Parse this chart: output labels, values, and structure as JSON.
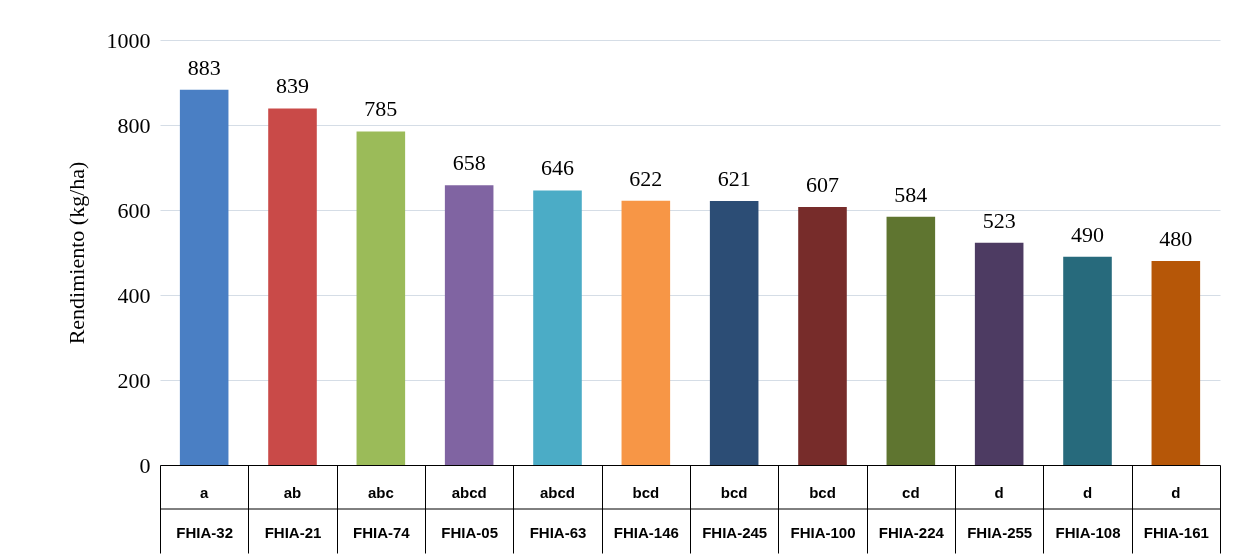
{
  "chart_data": {
    "type": "bar",
    "ylabel": "Rendimiento (kg/ha)",
    "categories": [
      "FHIA-32",
      "FHIA-21",
      "FHIA-74",
      "FHIA-05",
      "FHIA-63",
      "FHIA-146",
      "FHIA-245",
      "FHIA-100",
      "FHIA-224",
      "FHIA-255",
      "FHIA-108",
      "FHIA-161"
    ],
    "values": [
      883,
      839,
      785,
      658,
      646,
      622,
      621,
      607,
      584,
      523,
      490,
      480
    ],
    "colors": [
      "#4a7fc4",
      "#c94a48",
      "#9bbb59",
      "#8064a2",
      "#4bacc6",
      "#f79646",
      "#2c4d75",
      "#772c2a",
      "#5f7530",
      "#4d3b62",
      "#276a7c",
      "#b65708"
    ],
    "ylim": [
      0,
      1000
    ],
    "yticks": [
      0,
      200,
      400,
      600,
      800,
      1000
    ],
    "grid": "y",
    "data_labels": true,
    "annotations": [
      "a",
      "ab",
      "abc",
      "abcd",
      "abcd",
      "bcd",
      "bcd",
      "bcd",
      "cd",
      "d",
      "d",
      "d"
    ]
  }
}
